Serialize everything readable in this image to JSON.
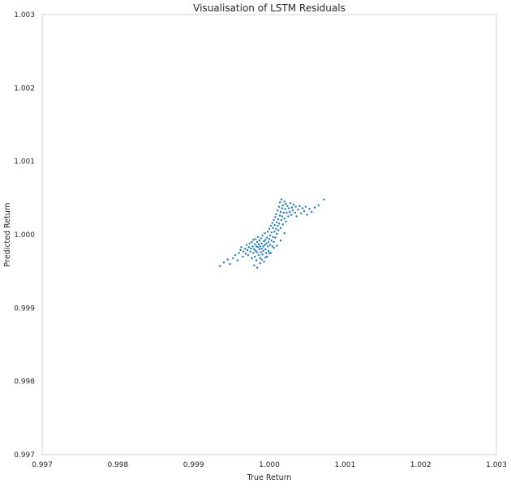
{
  "chart_data": {
    "type": "scatter",
    "title": "Visualisation of LSTM Residuals",
    "xlabel": "True Return",
    "ylabel": "Predicted Return",
    "xlim": [
      0.997,
      1.003
    ],
    "ylim": [
      0.997,
      1.003
    ],
    "xticks": [
      "0.997",
      "0.998",
      "0.999",
      "1.000",
      "1.001",
      "1.002",
      "1.003"
    ],
    "yticks": [
      "0.997",
      "0.998",
      "0.999",
      "1.000",
      "1.001",
      "1.002",
      "1.003"
    ],
    "grid": false,
    "marker_color": "#1f77b4",
    "series": [
      {
        "points": [
          [
            0.99935,
            0.99957
          ],
          [
            0.9994,
            0.99962
          ],
          [
            0.99945,
            0.99966
          ],
          [
            0.99948,
            0.9996
          ],
          [
            0.99952,
            0.99968
          ],
          [
            0.99955,
            0.99972
          ],
          [
            0.99958,
            0.99965
          ],
          [
            0.9996,
            0.99975
          ],
          [
            0.99962,
            0.99979
          ],
          [
            0.99963,
            0.99983
          ],
          [
            0.99965,
            0.9997
          ],
          [
            0.99966,
            0.99977
          ],
          [
            0.99968,
            0.99981
          ],
          [
            0.99969,
            0.99974
          ],
          [
            0.9997,
            0.99986
          ],
          [
            0.99971,
            0.99979
          ],
          [
            0.99972,
            0.99972
          ],
          [
            0.99973,
            0.99983
          ],
          [
            0.99974,
            0.99988
          ],
          [
            0.99975,
            0.99977
          ],
          [
            0.99976,
            0.99981
          ],
          [
            0.99977,
            0.99968
          ],
          [
            0.99977,
            0.9999
          ],
          [
            0.99978,
            0.99984
          ],
          [
            0.99979,
            0.99975
          ],
          [
            0.99979,
            0.99993
          ],
          [
            0.9998,
            0.9998
          ],
          [
            0.99981,
            0.99987
          ],
          [
            0.99981,
            0.9997
          ],
          [
            0.99982,
            0.99978
          ],
          [
            0.99982,
            0.99994
          ],
          [
            0.99983,
            0.99984
          ],
          [
            0.99983,
            0.99965
          ],
          [
            0.99984,
            0.9999
          ],
          [
            0.99984,
            0.99976
          ],
          [
            0.99985,
            0.99983
          ],
          [
            0.99985,
            0.99997
          ],
          [
            0.99986,
            0.99972
          ],
          [
            0.99986,
            0.99987
          ],
          [
            0.99987,
            0.9998
          ],
          [
            0.99987,
            0.99992
          ],
          [
            0.99988,
            0.99968
          ],
          [
            0.99988,
            0.99984
          ],
          [
            0.99989,
            0.99976
          ],
          [
            0.99989,
            0.99995
          ],
          [
            0.9999,
            0.99981
          ],
          [
            0.9999,
            0.99988
          ],
          [
            0.99991,
            0.99973
          ],
          [
            0.99991,
            0.99999
          ],
          [
            0.99992,
            0.99984
          ],
          [
            0.99992,
            0.99978
          ],
          [
            0.99993,
            0.99991
          ],
          [
            0.99993,
            0.99963
          ],
          [
            0.99994,
            0.99986
          ],
          [
            0.99994,
            1.00002
          ],
          [
            0.99995,
            0.9998
          ],
          [
            0.99995,
            0.99993
          ],
          [
            0.99996,
            0.99975
          ],
          [
            0.99996,
            0.99988
          ],
          [
            0.99997,
            0.99996
          ],
          [
            0.99997,
            0.9997
          ],
          [
            0.99998,
            0.99984
          ],
          [
            0.99998,
            1.00004
          ],
          [
            0.99999,
            0.9999
          ],
          [
            0.99999,
            0.99978
          ],
          [
            1.0,
            0.99994
          ],
          [
            1.0,
            1.00008
          ],
          [
            1.00001,
            0.99986
          ],
          [
            1.00001,
            0.99999
          ],
          [
            1.00002,
            0.99975
          ],
          [
            1.00002,
            1.00012
          ],
          [
            1.00003,
            0.99992
          ],
          [
            1.00003,
            1.00003
          ],
          [
            1.00004,
            1.00016
          ],
          [
            1.00004,
            0.99984
          ],
          [
            1.00005,
            0.99997
          ],
          [
            1.00005,
            1.00009
          ],
          [
            1.00006,
            1.0002
          ],
          [
            1.00006,
            0.9999
          ],
          [
            1.00007,
            1.00004
          ],
          [
            1.00007,
            1.00013
          ],
          [
            1.00008,
            1.00024
          ],
          [
            1.00008,
            0.99996
          ],
          [
            1.00009,
            1.00008
          ],
          [
            1.00009,
            1.00028
          ],
          [
            1.0001,
            1.00017
          ],
          [
            1.0001,
            1.00001
          ],
          [
            1.00011,
            1.00012
          ],
          [
            1.00011,
            1.00033
          ],
          [
            1.00012,
            1.00021
          ],
          [
            1.00012,
            1.00006
          ],
          [
            1.00013,
            1.00038
          ],
          [
            1.00013,
            1.00015
          ],
          [
            1.00014,
            1.00026
          ],
          [
            1.00014,
            1.00044
          ],
          [
            1.00015,
            1.00009
          ],
          [
            1.00015,
            1.00031
          ],
          [
            1.00016,
            1.0002
          ],
          [
            1.00016,
            1.00048
          ],
          [
            1.00017,
            1.00036
          ],
          [
            1.00017,
            1.00025
          ],
          [
            1.00018,
            1.00014
          ],
          [
            1.00018,
            1.0004
          ],
          [
            1.00019,
            1.0003
          ],
          [
            1.0002,
            1.00045
          ],
          [
            1.0002,
            1.00022
          ],
          [
            1.00021,
            1.00035
          ],
          [
            1.00022,
            1.00042
          ],
          [
            1.00022,
            1.00018
          ],
          [
            1.00023,
            1.0003
          ],
          [
            1.00024,
            1.00039
          ],
          [
            1.00025,
            1.00025
          ],
          [
            1.00026,
            1.00036
          ],
          [
            1.00027,
            1.00031
          ],
          [
            1.00028,
            1.00043
          ],
          [
            1.00029,
            1.00027
          ],
          [
            1.0003,
            1.00037
          ],
          [
            1.00031,
            1.00033
          ],
          [
            1.00032,
            1.00041
          ],
          [
            1.00034,
            1.0003
          ],
          [
            1.00035,
            1.00038
          ],
          [
            1.00036,
            1.00025
          ],
          [
            1.00038,
            1.00034
          ],
          [
            1.0004,
            1.00039
          ],
          [
            1.00042,
            1.00029
          ],
          [
            1.00044,
            1.00036
          ],
          [
            1.00046,
            1.00032
          ],
          [
            1.00048,
            1.00038
          ],
          [
            1.0005,
            1.00027
          ],
          [
            1.00053,
            1.00035
          ],
          [
            1.00056,
            1.00031
          ],
          [
            1.0006,
            1.00037
          ],
          [
            1.00065,
            1.0004
          ],
          [
            1.00072,
            1.00048
          ],
          [
            0.9998,
            0.99958
          ],
          [
            0.99984,
            0.99955
          ],
          [
            0.99988,
            0.99961
          ],
          [
            1.0001,
            0.99985
          ],
          [
            1.00015,
            0.99992
          ],
          [
            1.0002,
            1.00002
          ],
          [
            0.9999,
            0.99966
          ],
          [
            0.99995,
            0.99969
          ],
          [
            1.0,
            0.99975
          ],
          [
            1.00006,
            0.99982
          ]
        ]
      }
    ]
  }
}
